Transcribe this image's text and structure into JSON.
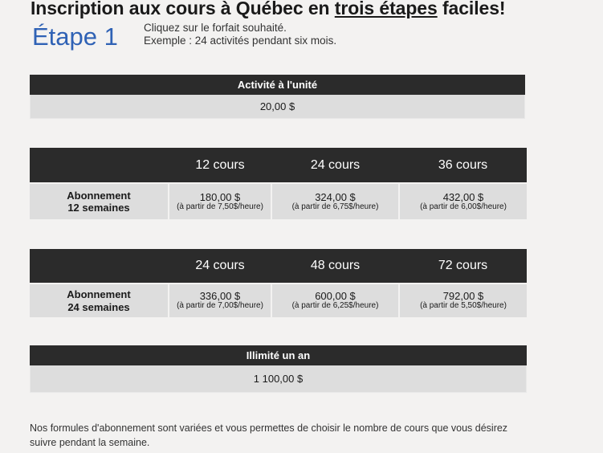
{
  "header": {
    "title_before": "Inscription aux cours à Québec en",
    "title_underlined": "trois étapes",
    "title_after": "faciles!"
  },
  "step": {
    "label": "Étape 1",
    "instruction_line1": "Cliquez sur le forfait souhaité.",
    "instruction_line2": "Exemple : 24 activités pendant six mois."
  },
  "single": {
    "title": "Activité à l'unité",
    "price": "20,00 $"
  },
  "plan12": {
    "label_line1": "Abonnement",
    "label_line2": "12 semaines",
    "options": [
      {
        "courses": "12 cours",
        "price": "180,00 $",
        "rate": "(à partir de 7,50$/heure)"
      },
      {
        "courses": "24 cours",
        "price": "324,00 $",
        "rate": "(à partir de 6,75$/heure)"
      },
      {
        "courses": "36 cours",
        "price": "432,00 $",
        "rate": "(à partir de 6,00$/heure)"
      }
    ]
  },
  "plan24": {
    "label_line1": "Abonnement",
    "label_line2": "24 semaines",
    "options": [
      {
        "courses": "24 cours",
        "price": "336,00 $",
        "rate": "(à partir de 7,00$/heure)"
      },
      {
        "courses": "48 cours",
        "price": "600,00 $",
        "rate": "(à partir de 6,25$/heure)"
      },
      {
        "courses": "72 cours",
        "price": "792,00 $",
        "rate": "(à partir de 5,50$/heure)"
      }
    ]
  },
  "unlimited": {
    "title": "Illimité un an",
    "price": "1 100,00 $"
  },
  "footer": {
    "text": "Nos formules d'abonnement sont variées et vous permettes de choisir le nombre de cours que vous désirez suivre pendant la semaine."
  },
  "colors": {
    "accent_blue": "#2f62b5",
    "header_bar": "#2b2b2b",
    "cell_bg": "#dddddd",
    "page_bg": "#f3f2f1"
  }
}
